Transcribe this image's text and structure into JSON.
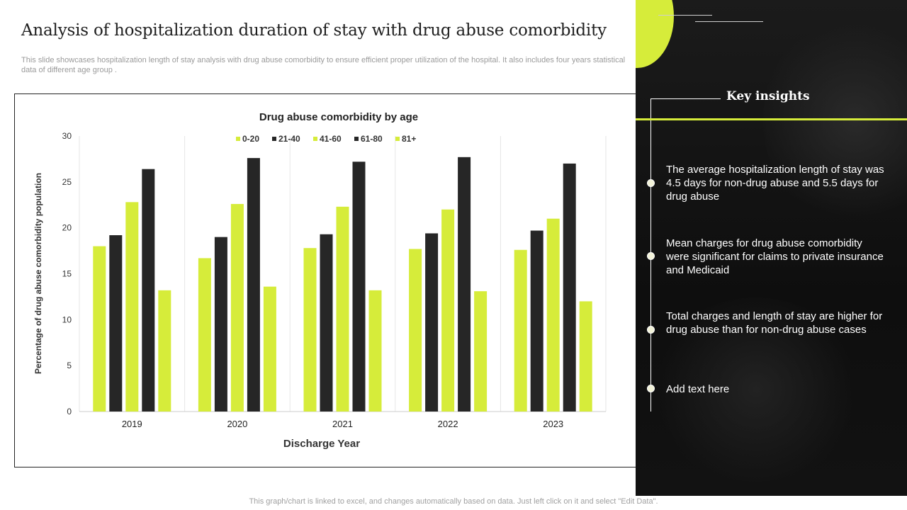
{
  "title": "Analysis of hospitalization duration of stay with drug abuse comorbidity",
  "subtitle": "This slide showcases hospitalization length of stay analysis with drug abuse comorbidity to ensure efficient proper utilization of the hospital. It also includes four years statistical data of different age group .",
  "footer": "This graph/chart is linked to excel,  and changes automatically based on data. Just left click on it and select \"Edit Data\".",
  "colors": {
    "accent": "#d6ec3a",
    "dark": "#262626"
  },
  "insights": {
    "heading": "Key insights",
    "items": [
      "The average hospitalization length of stay was 4.5 days for non-drug abuse and 5.5 days for drug abuse",
      "Mean charges for drug abuse comorbidity were significant for claims to private insurance and Medicaid",
      "Total charges and length of stay are higher for drug abuse than for non-drug abuse cases",
      "Add text here"
    ]
  },
  "chart_data": {
    "type": "bar",
    "title": "Drug abuse comorbidity  by age",
    "xlabel": "Discharge Year",
    "ylabel": "Percentage of drug abuse comorbidity population",
    "categories": [
      "2019",
      "2020",
      "2021",
      "2022",
      "2023"
    ],
    "ylim": [
      0,
      30
    ],
    "yticks": [
      0,
      5,
      10,
      15,
      20,
      25,
      30
    ],
    "legend_position": "top",
    "grid": "vertical category separators",
    "series": [
      {
        "name": "0-20",
        "color": "#d6ec3a",
        "values": [
          18.0,
          16.7,
          17.8,
          17.7,
          17.6
        ]
      },
      {
        "name": "21-40",
        "color": "#262626",
        "values": [
          19.2,
          19.0,
          19.3,
          19.4,
          19.7
        ]
      },
      {
        "name": "41-60",
        "color": "#d6ec3a",
        "values": [
          22.8,
          22.6,
          22.3,
          22.0,
          21.0
        ]
      },
      {
        "name": "61-80",
        "color": "#262626",
        "values": [
          26.4,
          27.6,
          27.2,
          27.7,
          27.0
        ]
      },
      {
        "name": "81+",
        "color": "#d6ec3a",
        "values": [
          13.2,
          13.6,
          13.2,
          13.1,
          12.0
        ]
      }
    ]
  }
}
